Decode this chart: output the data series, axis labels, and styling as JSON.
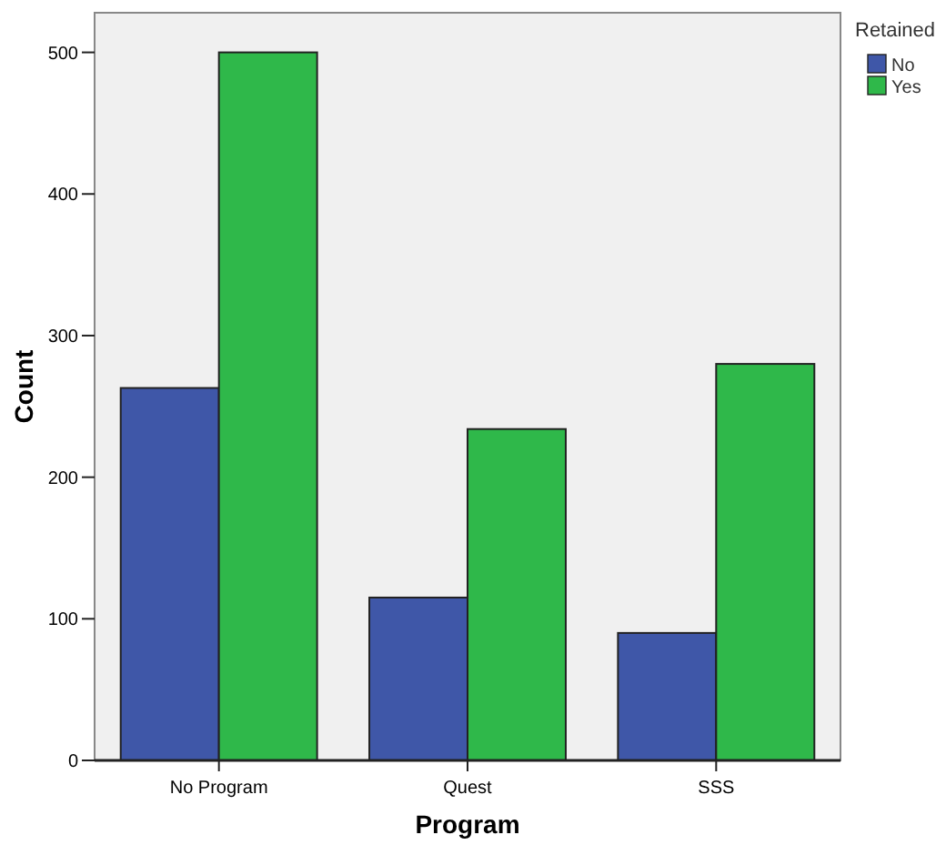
{
  "chart_data": {
    "type": "bar",
    "xlabel": "Program",
    "ylabel": "Count",
    "legend_title": "Retained",
    "categories": [
      "No Program",
      "Quest",
      "SSS"
    ],
    "series": [
      {
        "name": "No",
        "color": "#3f57a8",
        "values": [
          263,
          115,
          90
        ]
      },
      {
        "name": "Yes",
        "color": "#2fb84a",
        "values": [
          500,
          234,
          280
        ]
      }
    ],
    "ylim": [
      0,
      528
    ],
    "yticks": [
      0,
      100,
      200,
      300,
      400,
      500
    ],
    "grid": false,
    "legend": "right"
  }
}
